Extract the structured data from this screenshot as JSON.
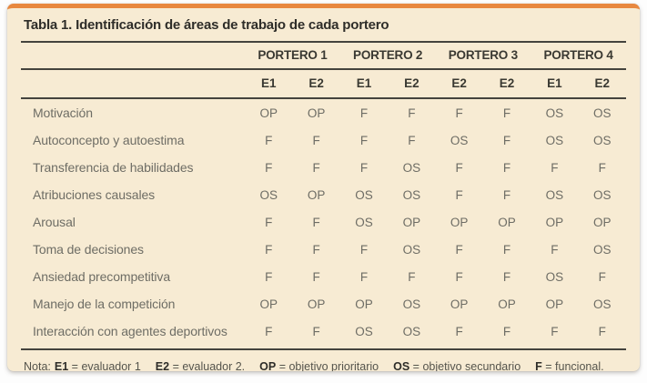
{
  "panel": {
    "title": "Tabla 1. Identificación de áreas de trabajo de cada portero",
    "colors": {
      "panel_background": "#f7ebd3",
      "accent_top_border": "#e8883f",
      "rule_line": "#44433d",
      "title_text": "#2e2d29",
      "body_text": "#6e6d65"
    }
  },
  "table": {
    "group_headers": [
      "PORTERO 1",
      "PORTERO 2",
      "PORTERO 3",
      "PORTERO 4"
    ],
    "sub_headers": [
      "E1",
      "E2",
      "E1",
      "E2",
      "E2",
      "E2",
      "E1",
      "E2"
    ],
    "rows": [
      {
        "label": "Motivación",
        "values": [
          "OP",
          "OP",
          "F",
          "F",
          "F",
          "F",
          "OS",
          "OS"
        ]
      },
      {
        "label": "Autoconcepto y autoestima",
        "values": [
          "F",
          "F",
          "F",
          "F",
          "OS",
          "F",
          "OS",
          "OS"
        ]
      },
      {
        "label": "Transferencia de habilidades",
        "values": [
          "F",
          "F",
          "F",
          "OS",
          "F",
          "F",
          "F",
          "F"
        ]
      },
      {
        "label": "Atribuciones causales",
        "values": [
          "OS",
          "OP",
          "OS",
          "OS",
          "F",
          "F",
          "OS",
          "OS"
        ]
      },
      {
        "label": "Arousal",
        "values": [
          "F",
          "F",
          "OS",
          "OP",
          "OP",
          "OP",
          "OP",
          "OP"
        ]
      },
      {
        "label": "Toma de decisiones",
        "values": [
          "F",
          "F",
          "F",
          "OS",
          "F",
          "F",
          "F",
          "OS"
        ]
      },
      {
        "label": "Ansiedad precompetitiva",
        "values": [
          "F",
          "F",
          "F",
          "F",
          "F",
          "F",
          "OS",
          "F"
        ]
      },
      {
        "label": "Manejo de la competición",
        "values": [
          "OP",
          "OP",
          "OP",
          "OS",
          "OP",
          "OP",
          "OP",
          "OS"
        ]
      },
      {
        "label": "Interacción con agentes deportivos",
        "values": [
          "F",
          "F",
          "OS",
          "OS",
          "F",
          "F",
          "F",
          "F"
        ]
      }
    ]
  },
  "footnote": {
    "prefix": "Nota:",
    "items": [
      {
        "term": "E1",
        "def": "= evaluador 1"
      },
      {
        "term": "E2",
        "def": "= evaluador 2."
      },
      {
        "term": "OP",
        "def": "= objetivo prioritario"
      },
      {
        "term": "OS",
        "def": "= objetivo secundario"
      },
      {
        "term": "F",
        "def": "= funcional."
      }
    ]
  }
}
